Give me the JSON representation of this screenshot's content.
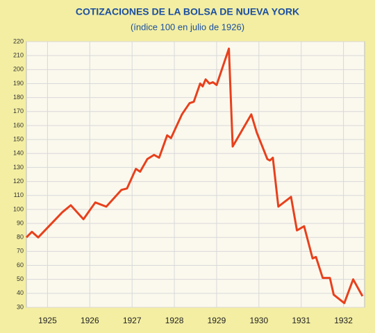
{
  "chart_data": {
    "type": "line",
    "title": "COTIZACIONES DE LA BOLSA DE NUEVA YORK",
    "subtitle": "(índice 100 en julio de 1926)",
    "x": [
      1925.0,
      1925.13,
      1925.28,
      1925.85,
      1926.05,
      1926.35,
      1926.63,
      1926.89,
      1927.25,
      1927.38,
      1927.59,
      1927.69,
      1927.86,
      1928.02,
      1928.14,
      1928.33,
      1928.42,
      1928.68,
      1928.86,
      1928.96,
      1929.11,
      1929.17,
      1929.24,
      1929.33,
      1929.41,
      1929.5,
      1929.79,
      1929.88,
      1930.32,
      1930.45,
      1930.7,
      1930.76,
      1930.83,
      1930.96,
      1931.26,
      1931.4,
      1931.57,
      1931.77,
      1931.85,
      1932.01,
      1932.18,
      1932.27,
      1932.52,
      1932.73,
      1932.95
    ],
    "series": [
      {
        "color": "#e8401c",
        "values": [
          80,
          84,
          80,
          98,
          103,
          93,
          105,
          102,
          114,
          115,
          129,
          127,
          136,
          139,
          137,
          153,
          151,
          168,
          176,
          177,
          190,
          188,
          193,
          190,
          191,
          189,
          215,
          145,
          168,
          155,
          136,
          135,
          137,
          102,
          109,
          85,
          88,
          65,
          66,
          51,
          51,
          39,
          33,
          50,
          38
        ]
      }
    ],
    "xlim": [
      1925,
      1933
    ],
    "xticks": [
      {
        "value": 1925.5,
        "label": "1925"
      },
      {
        "value": 1926.5,
        "label": "1926"
      },
      {
        "value": 1927.5,
        "label": "1927"
      },
      {
        "value": 1928.5,
        "label": "1928"
      },
      {
        "value": 1929.5,
        "label": "1929"
      },
      {
        "value": 1930.5,
        "label": "1930"
      },
      {
        "value": 1931.5,
        "label": "1931"
      },
      {
        "value": 1932.5,
        "label": "1932"
      }
    ],
    "ylim": [
      30,
      220
    ],
    "yticks": [
      30,
      40,
      50,
      60,
      70,
      80,
      90,
      100,
      110,
      120,
      130,
      140,
      150,
      160,
      170,
      180,
      190,
      200,
      210,
      220
    ],
    "grid": true
  }
}
